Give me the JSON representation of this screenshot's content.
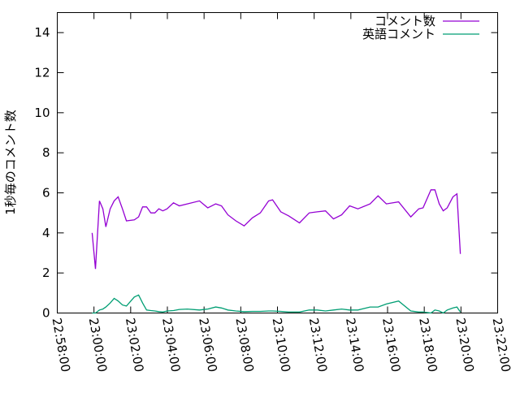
{
  "chart_data": {
    "type": "line",
    "title": "",
    "xlabel": "",
    "ylabel": "1秒毎のコメント数",
    "xlim": [
      "22:58:00",
      "23:22:00"
    ],
    "ylim": [
      0,
      15
    ],
    "x_ticks": [
      "22:58:00",
      "23:00:00",
      "23:02:00",
      "23:04:00",
      "23:06:00",
      "23:08:00",
      "23:10:00",
      "23:12:00",
      "23:14:00",
      "23:16:00",
      "23:18:00",
      "23:20:00",
      "23:22:00"
    ],
    "y_ticks": [
      "0",
      "2",
      "4",
      "6",
      "8",
      "10",
      "12",
      "14"
    ],
    "grid": false,
    "legend_position": "top-right",
    "x": [
      "22:59:54",
      "23:00:05",
      "23:00:18",
      "23:00:29",
      "23:00:39",
      "23:00:53",
      "23:01:06",
      "23:01:19",
      "23:01:33",
      "23:01:46",
      "23:02:12",
      "23:02:26",
      "23:02:39",
      "23:02:52",
      "23:03:06",
      "23:03:19",
      "23:03:32",
      "23:03:45",
      "23:03:59",
      "23:04:20",
      "23:04:39",
      "23:05:05",
      "23:05:45",
      "23:06:12",
      "23:06:38",
      "23:06:57",
      "23:07:18",
      "23:07:44",
      "23:08:11",
      "23:08:38",
      "23:09:04",
      "23:09:31",
      "23:09:44",
      "23:10:11",
      "23:10:37",
      "23:11:12",
      "23:11:44",
      "23:12:10",
      "23:12:37",
      "23:13:03",
      "23:13:30",
      "23:13:56",
      "23:14:23",
      "23:15:03",
      "23:15:29",
      "23:15:56",
      "23:16:36",
      "23:17:16",
      "23:17:42",
      "23:17:56",
      "23:18:22",
      "23:18:35",
      "23:18:49",
      "23:19:02",
      "23:19:15",
      "23:19:34",
      "23:19:47",
      "23:19:58"
    ],
    "series": [
      {
        "name": "コメント数",
        "color": "#9400d3",
        "values": [
          4.0,
          2.2,
          5.6,
          5.2,
          4.3,
          5.2,
          5.6,
          5.8,
          5.2,
          4.6,
          4.65,
          4.8,
          5.3,
          5.3,
          5.0,
          5.0,
          5.2,
          5.1,
          5.2,
          5.5,
          5.35,
          5.45,
          5.6,
          5.25,
          5.45,
          5.35,
          4.9,
          4.6,
          4.35,
          4.75,
          5.0,
          5.6,
          5.65,
          5.05,
          4.85,
          4.5,
          5.0,
          5.05,
          5.1,
          4.7,
          4.9,
          5.35,
          5.2,
          5.45,
          5.85,
          5.45,
          5.55,
          4.8,
          5.2,
          5.25,
          6.15,
          6.15,
          5.45,
          5.1,
          5.25,
          5.8,
          5.95,
          2.95
        ]
      },
      {
        "name": "英語コメント",
        "color": "#009e73",
        "values": [
          0.0,
          0.0,
          0.15,
          0.2,
          0.3,
          0.5,
          0.73,
          0.6,
          0.4,
          0.35,
          0.8,
          0.9,
          0.5,
          0.15,
          0.12,
          0.1,
          0.07,
          0.05,
          0.1,
          0.12,
          0.18,
          0.2,
          0.15,
          0.2,
          0.3,
          0.25,
          0.15,
          0.1,
          0.07,
          0.08,
          0.08,
          0.1,
          0.1,
          0.08,
          0.05,
          0.05,
          0.15,
          0.15,
          0.1,
          0.15,
          0.2,
          0.15,
          0.15,
          0.3,
          0.3,
          0.45,
          0.6,
          0.1,
          0.05,
          0.05,
          0.0,
          0.15,
          0.1,
          0.0,
          0.15,
          0.25,
          0.3,
          0.05
        ]
      }
    ]
  }
}
